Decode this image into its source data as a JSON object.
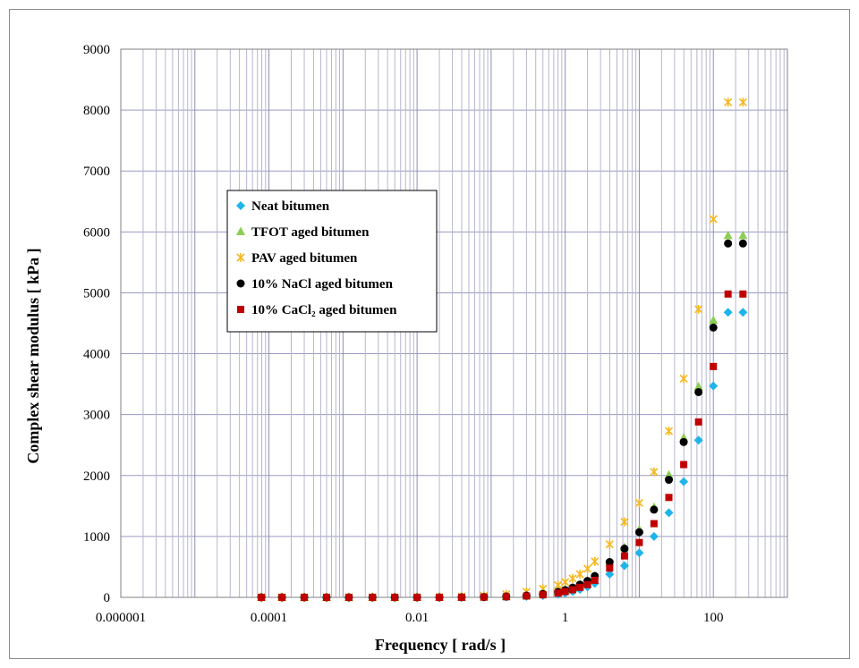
{
  "chart_data": {
    "type": "scatter",
    "xlabel": "Frequency [ rad/s ]",
    "ylabel": "Complex shear modulus [ kPa ]",
    "x_scale": "log",
    "xlim": [
      1e-06,
      1000
    ],
    "ylim": [
      0,
      9000
    ],
    "x_tick_labels": [
      "0.000001",
      "0.0001",
      "0.01",
      "1",
      "100"
    ],
    "y_ticks": [
      0,
      1000,
      2000,
      3000,
      4000,
      5000,
      6000,
      7000,
      8000,
      9000
    ],
    "grid": true,
    "legend_position": "upper-left inside plot",
    "series": [
      {
        "name": "Neat bitumen",
        "marker": "diamond",
        "color": "#1fb4ea",
        "x": [
          7.9e-05,
          0.00015,
          0.0003,
          0.0006,
          0.0012,
          0.0025,
          0.005,
          0.01,
          0.02,
          0.04,
          0.08,
          0.16,
          0.3,
          0.5,
          0.8,
          1.0,
          1.26,
          1.58,
          2.0,
          2.51,
          3.98,
          6.31,
          10,
          15.8,
          25.1,
          39.8,
          63.1,
          100,
          158,
          251
        ],
        "y": [
          0,
          0,
          0,
          0,
          0,
          0,
          0,
          0,
          0,
          0,
          2,
          6,
          15,
          30,
          50,
          70,
          95,
          130,
          170,
          230,
          380,
          520,
          730,
          1000,
          1390,
          1900,
          2580,
          3470,
          4680,
          4680
        ]
      },
      {
        "name": "TFOT aged bitumen",
        "marker": "triangle",
        "color": "#8ccf52",
        "x": [
          7.9e-05,
          0.00015,
          0.0003,
          0.0006,
          0.0012,
          0.0025,
          0.005,
          0.01,
          0.02,
          0.04,
          0.08,
          0.16,
          0.3,
          0.5,
          0.8,
          1.0,
          1.26,
          1.58,
          2.0,
          2.51,
          3.98,
          6.31,
          10,
          15.8,
          25.1,
          39.8,
          63.1,
          100,
          158,
          251
        ],
        "y": [
          0,
          0,
          0,
          0,
          0,
          0,
          0,
          0,
          0,
          2,
          6,
          14,
          30,
          55,
          90,
          120,
          160,
          210,
          270,
          350,
          580,
          820,
          1110,
          1480,
          2010,
          2620,
          3460,
          4550,
          5940,
          5940
        ]
      },
      {
        "name": "PAV aged bitumen",
        "marker": "asterisk",
        "color": "#f5b81e",
        "x": [
          7.9e-05,
          0.00015,
          0.0003,
          0.0006,
          0.0012,
          0.0025,
          0.005,
          0.01,
          0.02,
          0.04,
          0.08,
          0.16,
          0.3,
          0.5,
          0.8,
          1.0,
          1.26,
          1.58,
          2.0,
          2.51,
          3.98,
          6.31,
          10,
          15.8,
          25.1,
          39.8,
          63.1,
          100,
          158,
          251
        ],
        "y": [
          0,
          0,
          0,
          0,
          0,
          0,
          0,
          2,
          5,
          12,
          25,
          50,
          90,
          140,
          200,
          250,
          310,
          380,
          470,
          590,
          870,
          1240,
          1550,
          2060,
          2730,
          3590,
          4730,
          6210,
          8130,
          8130
        ]
      },
      {
        "name": "10% NaCl aged bitumen",
        "marker": "circle",
        "color": "#000000",
        "x": [
          7.9e-05,
          0.00015,
          0.0003,
          0.0006,
          0.0012,
          0.0025,
          0.005,
          0.01,
          0.02,
          0.04,
          0.08,
          0.16,
          0.3,
          0.5,
          0.8,
          1.0,
          1.26,
          1.58,
          2.0,
          2.51,
          3.98,
          6.31,
          10,
          15.8,
          25.1,
          39.8,
          63.1,
          100,
          158,
          251
        ],
        "y": [
          0,
          0,
          0,
          0,
          0,
          0,
          0,
          0,
          0,
          2,
          6,
          14,
          30,
          55,
          90,
          120,
          160,
          210,
          270,
          350,
          580,
          800,
          1070,
          1440,
          1930,
          2550,
          3370,
          4430,
          5810,
          5810
        ]
      },
      {
        "name": "10% CaCl₂ aged bitumen",
        "marker": "square",
        "color": "#c00000",
        "x": [
          7.9e-05,
          0.00015,
          0.0003,
          0.0006,
          0.0012,
          0.0025,
          0.005,
          0.01,
          0.02,
          0.04,
          0.08,
          0.16,
          0.3,
          0.5,
          0.8,
          1.0,
          1.26,
          1.58,
          2.0,
          2.51,
          3.98,
          6.31,
          10,
          15.8,
          25.1,
          39.8,
          63.1,
          100,
          158,
          251
        ],
        "y": [
          0,
          0,
          0,
          0,
          0,
          0,
          0,
          0,
          0,
          1,
          4,
          10,
          22,
          42,
          70,
          95,
          125,
          165,
          210,
          280,
          480,
          680,
          900,
          1210,
          1640,
          2180,
          2880,
          3790,
          4980,
          4980
        ]
      }
    ]
  }
}
